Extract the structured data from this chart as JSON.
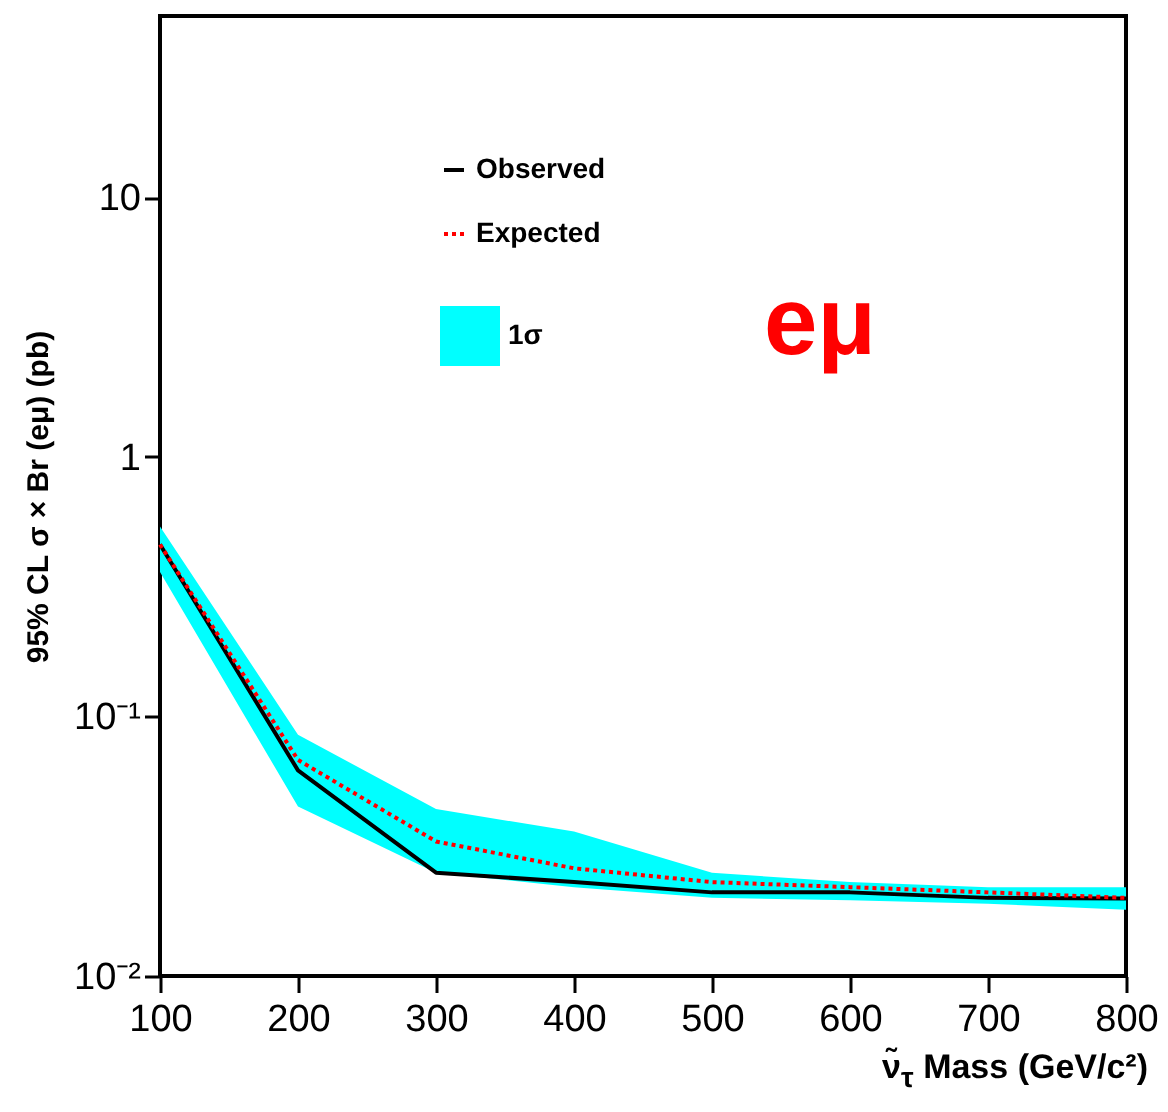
{
  "chart_data": {
    "type": "line",
    "xlabel": "ν̃$_{τ}$ Mass (GeV/c²)",
    "ylabel": "95% CL σ × Br (eμ) (pb)",
    "x": [
      100,
      200,
      300,
      400,
      500,
      600,
      700,
      800
    ],
    "series": [
      {
        "name": "1σ",
        "type": "area",
        "color": "#00ffff",
        "values": [
          null,
          null,
          null,
          null,
          null,
          null,
          null,
          null
        ],
        "lower": [
          0.36,
          0.045,
          0.025,
          0.022,
          0.02,
          0.0196,
          0.019,
          0.018
        ],
        "upper": [
          0.54,
          0.085,
          0.044,
          0.036,
          0.025,
          0.023,
          0.022,
          0.022
        ]
      },
      {
        "name": "Observed",
        "type": "line",
        "color": "#000000",
        "line_style": "solid",
        "values": [
          0.46,
          0.062,
          0.025,
          0.023,
          0.021,
          0.021,
          0.02,
          0.0199
        ]
      },
      {
        "name": "Expected",
        "type": "line",
        "color": "#ff0000",
        "line_style": "dotted",
        "values": [
          0.46,
          0.068,
          0.033,
          0.026,
          0.023,
          0.022,
          0.021,
          0.02
        ]
      }
    ],
    "xlim": [
      100,
      800
    ],
    "xticks": [
      100,
      200,
      300,
      400,
      500,
      600,
      700,
      800
    ],
    "ylim": [
      0.01,
      50
    ],
    "log": true,
    "yticks": [
      {
        "value": 0.01,
        "label": "10⁻²"
      },
      {
        "value": 0.1,
        "label": "10⁻¹"
      },
      1,
      10
    ],
    "grid": false,
    "legend": "top left",
    "marker": "none",
    "annotations": [
      "eμ"
    ]
  }
}
